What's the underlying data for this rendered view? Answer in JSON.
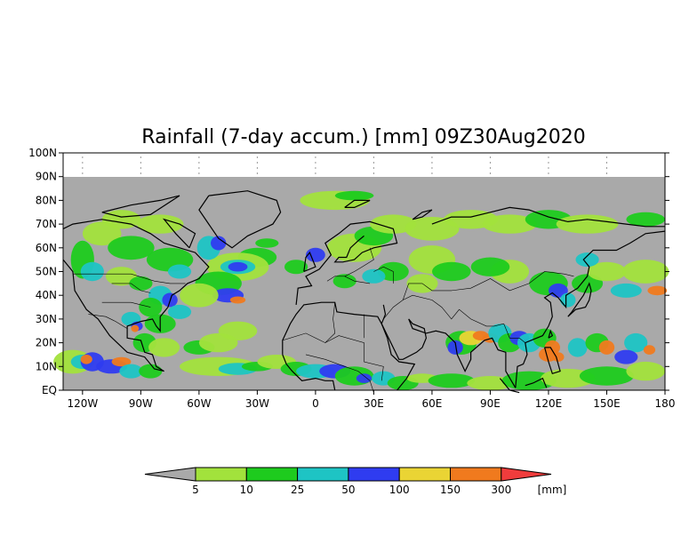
{
  "map": {
    "title": "Rainfall (7-day accum.) [mm] 09Z30Aug2020",
    "lat_labels": [
      "100N",
      "90N",
      "80N",
      "70N",
      "60N",
      "50N",
      "40N",
      "30N",
      "20N",
      "10N",
      "EQ"
    ],
    "lon_labels": [
      "120W",
      "90W",
      "60W",
      "30W",
      "0",
      "30E",
      "60E",
      "90E",
      "120E",
      "150E",
      "180"
    ],
    "lat_range": [
      0,
      100
    ],
    "lon_range": [
      -130,
      180
    ],
    "no_data_color": "#a9a9a9",
    "land_outline_color": "#000000"
  },
  "colorbar": {
    "unit_label": "[mm]",
    "thresholds": [
      "5",
      "10",
      "25",
      "50",
      "100",
      "150",
      "300"
    ],
    "colors": [
      "#a9a9a9",
      "#a2e23c",
      "#1ecb1e",
      "#1ec4c4",
      "#2f3cf0",
      "#ead434",
      "#f07a1e",
      "#f03c3c"
    ]
  }
}
